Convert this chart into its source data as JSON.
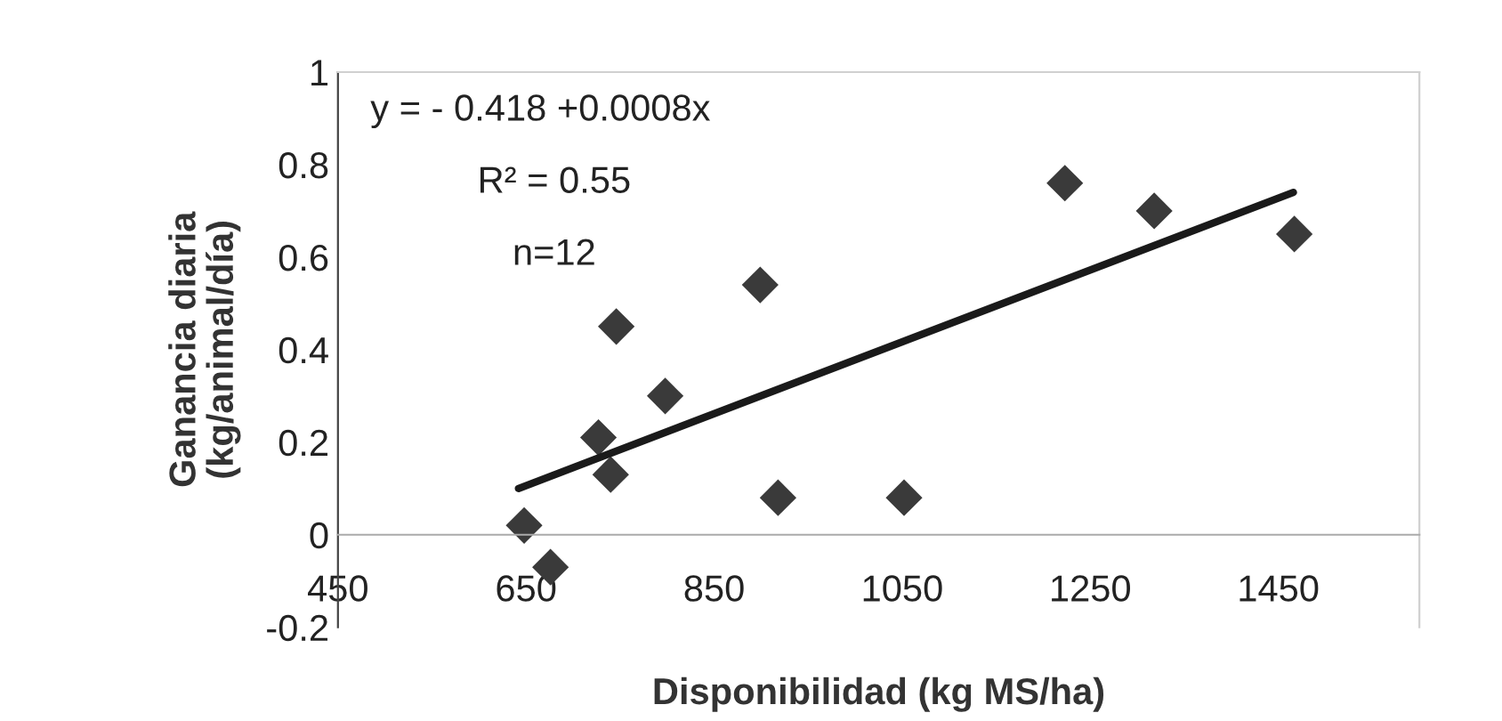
{
  "chart_data": {
    "type": "scatter",
    "xlabel": "Disponibilidad (kg MS/ha)",
    "ylabel": "Ganancia diaria\n(kg/animal/día)",
    "annotations": [
      "y = - 0.418 +0.0008x",
      "R² = 0.55",
      "n=12"
    ],
    "series": [
      {
        "color": "#3a3a3a",
        "marker": "diamond",
        "x": [
          648,
          676,
          727,
          740,
          746,
          798,
          899,
          918,
          1052,
          1223,
          1318,
          1467
        ],
        "values": [
          0.02,
          -0.07,
          0.21,
          0.13,
          0.45,
          0.3,
          0.54,
          0.08,
          0.08,
          0.76,
          0.7,
          0.65
        ]
      },
      {
        "type": "line",
        "color": "#1a1a1a",
        "marker": "none",
        "line_style": "solid",
        "x": [
          642,
          1466
        ],
        "values": [
          0.1,
          0.74
        ]
      }
    ],
    "xlim": [
      450,
      1600
    ],
    "xticks": [
      450,
      650,
      850,
      1050,
      1250,
      1450
    ],
    "ylim": [
      -0.2,
      1
    ],
    "yticks": [
      -0.2,
      0,
      0.2,
      0.4,
      0.6,
      0.8,
      1
    ],
    "grid": false,
    "legend": false
  }
}
